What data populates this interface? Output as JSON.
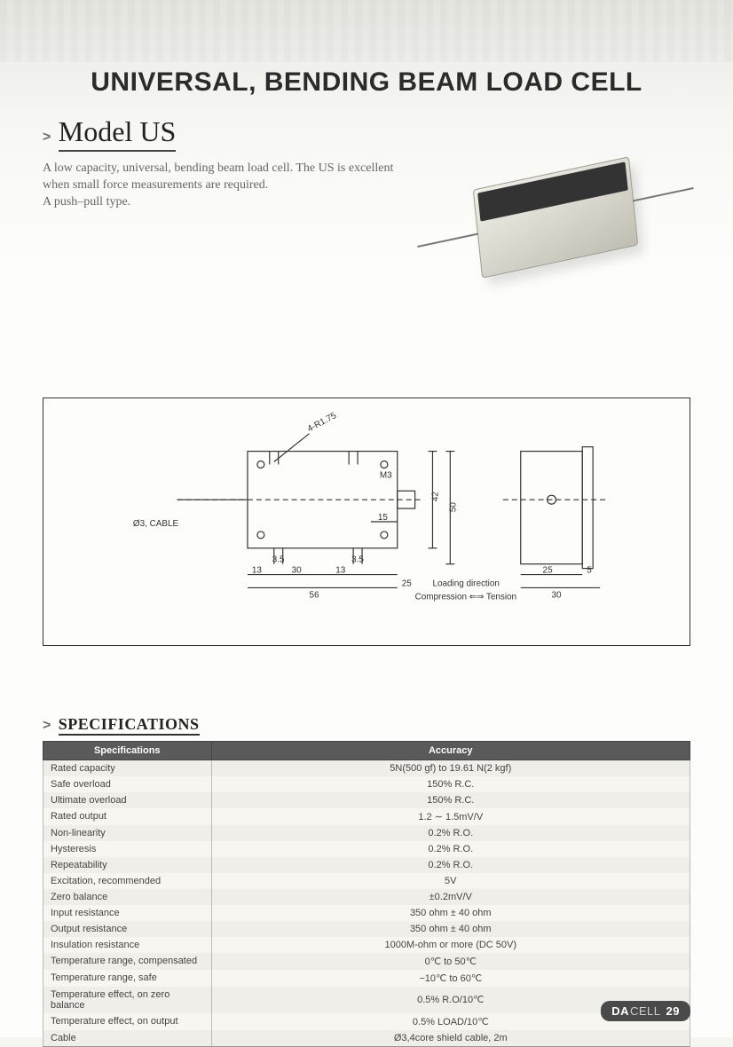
{
  "header": {
    "category": "UNIVERSAL, BENDING BEAM LOAD CELL"
  },
  "model": {
    "prefix": ">",
    "name": "Model US",
    "intro_lines": [
      "A low capacity, universal, bending beam load cell. The US is excellent when small force measurements are required.",
      "A push–pull type."
    ]
  },
  "drawing": {
    "cable_label": "Ø3, CABLE",
    "hole_label": "4-R1.75",
    "thread_label": "M3",
    "dims": {
      "top_height": "42",
      "overall_height": "50",
      "slot_depth": "15",
      "left_off": "13",
      "hole_pitch": "30",
      "leg_gap": "3.5",
      "right_off": "13",
      "overall_w": "56",
      "side_w": "25",
      "side_flange": "25",
      "side_tab": "5",
      "side_base": "30"
    },
    "loading_label": "Loading direction",
    "arrows_label": "Compression ⇐⇒ Tension"
  },
  "specs": {
    "section_prefix": ">",
    "section_title": "SPECIFICATIONS",
    "headers": [
      "Specifications",
      "Accuracy"
    ],
    "rows": [
      [
        "Rated capacity",
        "5N(500 gf) to 19.61 N(2 kgf)"
      ],
      [
        "Safe overload",
        "150% R.C."
      ],
      [
        "Ultimate overload",
        "150% R.C."
      ],
      [
        "Rated output",
        "1.2 ∼ 1.5mV/V"
      ],
      [
        "Non-linearity",
        "0.2% R.O."
      ],
      [
        "Hysteresis",
        "0.2% R.O."
      ],
      [
        "Repeatability",
        "0.2% R.O."
      ],
      [
        "Excitation, recommended",
        "5V"
      ],
      [
        "Zero balance",
        "±0.2mV/V"
      ],
      [
        "Input resistance",
        "350 ohm ± 40 ohm"
      ],
      [
        "Output resistance",
        "350 ohm ± 40 ohm"
      ],
      [
        "Insulation resistance",
        "1000M-ohm or more (DC 50V)"
      ],
      [
        "Temperature range, compensated",
        "0℃ to 50℃"
      ],
      [
        "Temperature range, safe",
        "−10℃ to 60℃"
      ],
      [
        "Temperature effect, on zero balance",
        "0.5% R.O/10℃"
      ],
      [
        "Temperature effect, on output",
        "0.5% LOAD/10℃"
      ],
      [
        "Cable",
        "Ø3,4core shield cable, 2m"
      ]
    ]
  },
  "footer": {
    "brand_a": "DA",
    "brand_b": "CELL",
    "page": "29"
  },
  "colors": {
    "header_text": "#2b2b2b",
    "table_header_bg": "#5a5a5a",
    "row_odd": "#efeee9",
    "row_even": "#f7f6f1",
    "footer_bg": "#4a4a4a"
  }
}
